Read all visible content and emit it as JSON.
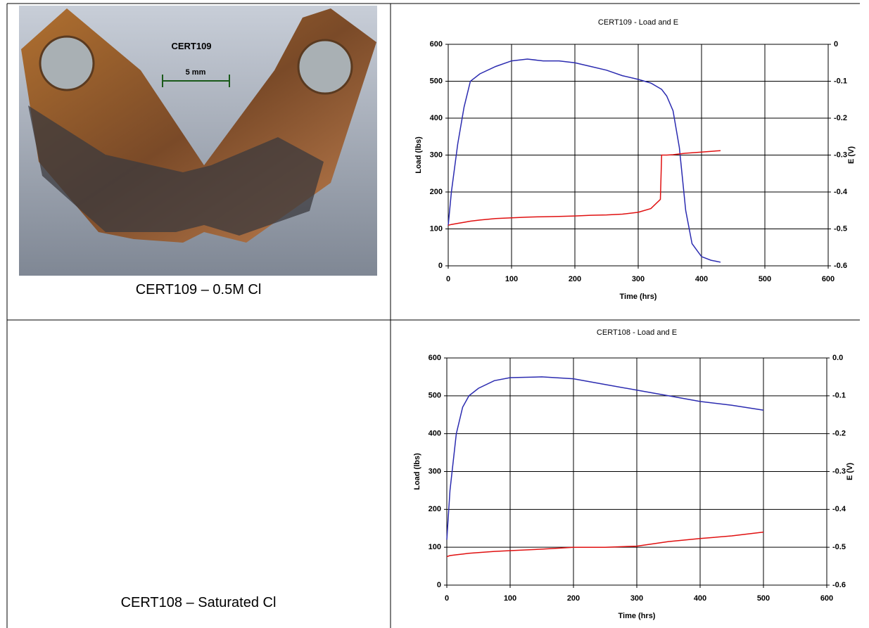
{
  "photo": {
    "label": "CERT109",
    "scale": "5 mm"
  },
  "captions": [
    "CERT109 – 0.5M Cl",
    "CERT108 – Saturated Cl"
  ],
  "chart_data": [
    {
      "type": "line",
      "title": "CERT109 - Load and E",
      "x_label": "Time (hrs)",
      "y_label": "Load (lbs)",
      "y2_label": "E (V)",
      "x": [
        0,
        5,
        15,
        25,
        35,
        50,
        75,
        100,
        125,
        150,
        175,
        200,
        225,
        250,
        275,
        300,
        320,
        335,
        337,
        345,
        355,
        365,
        375,
        385,
        400,
        415,
        430
      ],
      "series": [
        {
          "color": "#2b2bb0",
          "values": [
            110,
            200,
            330,
            430,
            500,
            520,
            540,
            555,
            560,
            555,
            555,
            550,
            540,
            530,
            515,
            505,
            495,
            480,
            478,
            460,
            420,
            320,
            150,
            60,
            25,
            15,
            10
          ]
        },
        {
          "color": "#e01010",
          "axis": "y2",
          "values": [
            -0.49,
            -0.488,
            -0.485,
            -0.482,
            -0.479,
            -0.476,
            -0.472,
            -0.47,
            -0.468,
            -0.467,
            -0.466,
            -0.465,
            -0.463,
            -0.462,
            -0.46,
            -0.455,
            -0.445,
            -0.42,
            -0.3,
            -0.3,
            -0.299,
            -0.297,
            -0.295,
            -0.294,
            -0.292,
            -0.29,
            -0.288
          ]
        }
      ],
      "xlim": [
        0,
        600
      ],
      "xticks": [
        0,
        100,
        200,
        300,
        400,
        500,
        600
      ],
      "ylim": [
        0,
        600
      ],
      "yticks": [
        0,
        100,
        200,
        300,
        400,
        500,
        600
      ],
      "y2lim": [
        -0.6,
        0
      ],
      "y2ticks": [
        -0.6,
        -0.5,
        -0.4,
        -0.3,
        -0.2,
        -0.1,
        0
      ],
      "grid": true
    },
    {
      "type": "line",
      "title": "CERT108 - Load and E",
      "x_label": "Time (hrs)",
      "y_label": "Load (lbs)",
      "y2_label": "E (V)",
      "x": [
        0,
        5,
        15,
        25,
        35,
        50,
        75,
        100,
        150,
        200,
        250,
        300,
        350,
        400,
        450,
        500
      ],
      "series": [
        {
          "color": "#2b2bb0",
          "values": [
            120,
            250,
            400,
            470,
            500,
            520,
            540,
            548,
            550,
            545,
            530,
            515,
            500,
            485,
            475,
            462
          ]
        },
        {
          "color": "#e01010",
          "axis": "y2",
          "values": [
            -0.525,
            -0.522,
            -0.52,
            -0.518,
            -0.516,
            -0.514,
            -0.511,
            -0.509,
            -0.505,
            -0.5,
            -0.5,
            -0.497,
            -0.485,
            -0.477,
            -0.47,
            -0.46
          ]
        }
      ],
      "xlim": [
        0,
        600
      ],
      "xticks": [
        0,
        100,
        200,
        300,
        400,
        500,
        600
      ],
      "ylim": [
        0,
        600
      ],
      "yticks": [
        0,
        100,
        200,
        300,
        400,
        500,
        600
      ],
      "y2lim": [
        -0.6,
        0
      ],
      "y2ticks": [
        -0.6,
        -0.5,
        -0.4,
        -0.3,
        -0.2,
        -0.1,
        {
          "value": 0,
          "label": "0.0"
        }
      ],
      "grid": true
    }
  ]
}
